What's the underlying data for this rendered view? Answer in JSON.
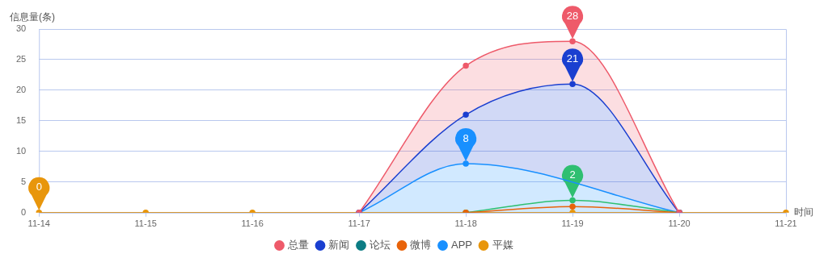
{
  "chart_data": {
    "type": "line",
    "ylabel": "信息量(条)",
    "xlabel": "时间",
    "categories": [
      "11-14",
      "11-15",
      "11-16",
      "11-17",
      "11-18",
      "11-19",
      "11-20",
      "11-21"
    ],
    "ylim": [
      0,
      30
    ],
    "yticks": [
      0,
      5,
      10,
      15,
      20,
      25,
      30
    ],
    "grid": "y",
    "legend": "bottom",
    "marker": "circle",
    "line_style": "solid",
    "series": [
      {
        "name": "总量",
        "type": "area",
        "color": "#ee5a6a",
        "values": [
          null,
          null,
          null,
          0,
          24,
          28,
          0,
          null
        ]
      },
      {
        "name": "新闻",
        "type": "area",
        "color": "#1a3fd0",
        "values": [
          null,
          null,
          null,
          0,
          16,
          21,
          0,
          null
        ]
      },
      {
        "name": "论坛",
        "type": "line",
        "color": "#0c7c84",
        "values": [
          null,
          null,
          null,
          null,
          null,
          null,
          null,
          null
        ]
      },
      {
        "name": "微博",
        "type": "line",
        "color": "#e8630a",
        "values": [
          null,
          null,
          null,
          null,
          0,
          1,
          0,
          null
        ]
      },
      {
        "type": "line",
        "color": "#2fbf71",
        "values": [
          null,
          null,
          null,
          null,
          0,
          2,
          0,
          null
        ]
      },
      {
        "name": "APP",
        "type": "area",
        "color": "#1890ff",
        "values": [
          null,
          null,
          null,
          0,
          8,
          null,
          0,
          null
        ]
      },
      {
        "name": "平媒",
        "type": "line",
        "color": "#e8960c",
        "values": [
          0,
          0,
          0,
          0,
          0,
          0,
          0,
          0
        ]
      }
    ],
    "annotations": [
      {
        "text": "28",
        "x": "11-19",
        "y": 28
      },
      {
        "text": "21",
        "x": "11-19",
        "y": 21
      },
      {
        "text": "8",
        "x": "11-18",
        "y": 8
      },
      {
        "text": "2",
        "x": "11-19",
        "y": 2
      },
      {
        "text": "0",
        "x": "11-14",
        "y": 0
      }
    ]
  }
}
